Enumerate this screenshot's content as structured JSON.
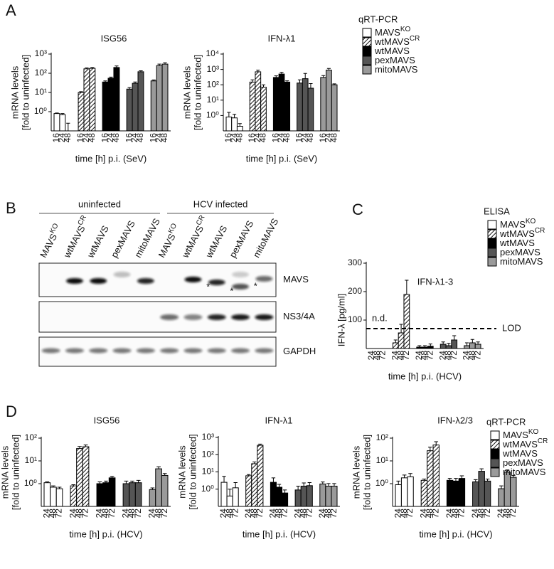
{
  "chart_data": [
    {
      "type": "bar",
      "panel": "A",
      "title": "ISG56",
      "ylabel": [
        "mRNA levels",
        "[fold to uninfected]"
      ],
      "xlabel": "time [h] p.i. (SeV)",
      "log_scale": true,
      "categories": [
        "16",
        "24",
        "48"
      ],
      "ylim": [
        0.1,
        1000
      ],
      "yticks": [
        {
          "value": 1,
          "label": "10⁰"
        },
        {
          "value": 10,
          "label": "10¹"
        },
        {
          "value": 100,
          "label": "10²"
        },
        {
          "value": 1000,
          "label": "10³"
        }
      ],
      "series": [
        {
          "color": "#ffffff",
          "values": [
            0.8,
            0.7,
            0.1
          ],
          "errors": [
            0.05,
            0.1,
            0.15
          ]
        },
        {
          "color": "#ffffff",
          "pattern": "hatch",
          "values": [
            10,
            170,
            180
          ],
          "errors": [
            1,
            20,
            20
          ]
        },
        {
          "color": "#000000",
          "values": [
            35,
            55,
            200
          ],
          "errors": [
            5,
            8,
            40
          ]
        },
        {
          "color": "#555555",
          "values": [
            15,
            30,
            120
          ],
          "errors": [
            3,
            5,
            15
          ]
        },
        {
          "color": "#9a9a9a",
          "values": [
            40,
            250,
            300
          ],
          "errors": [
            5,
            50,
            50
          ]
        }
      ]
    },
    {
      "type": "bar",
      "title": "IFN-λ1",
      "ylabel": [
        "mRNA levels",
        "[fold to uninfected]"
      ],
      "xlabel": "time [h] p.i. (SeV)",
      "log_scale": true,
      "legend_title": "qRT-PCR",
      "categories": [
        "16",
        "24",
        "48"
      ],
      "ylim": [
        0.1,
        10000
      ],
      "yticks": [
        {
          "value": 1,
          "label": "10⁰"
        },
        {
          "value": 10,
          "label": "10¹"
        },
        {
          "value": 100,
          "label": "10²"
        },
        {
          "value": 1000,
          "label": "10³"
        },
        {
          "value": 10000,
          "label": "10⁴"
        }
      ],
      "series": [
        {
          "name": "MAVS",
          "superscript": "KO",
          "color": "#ffffff",
          "values": [
            0.8,
            0.7,
            0.2
          ],
          "errors": [
            0.8,
            0.5,
            0.1
          ]
        },
        {
          "name": "wtMAVS",
          "superscript": "CR",
          "color": "#ffffff",
          "pattern": "hatch",
          "values": [
            150,
            700,
            70
          ],
          "errors": [
            60,
            200,
            30
          ]
        },
        {
          "name": "wtMAVS",
          "color": "#000000",
          "values": [
            300,
            500,
            150
          ],
          "errors": [
            80,
            150,
            30
          ]
        },
        {
          "name": "pexMAVS",
          "color": "#555555",
          "values": [
            130,
            250,
            60
          ],
          "errors": [
            80,
            300,
            60
          ]
        },
        {
          "name": "mitoMAVS",
          "color": "#9a9a9a",
          "values": [
            300,
            900,
            100
          ],
          "errors": [
            100,
            250,
            15
          ]
        }
      ]
    },
    {
      "type": "bar",
      "panel": "C",
      "title": "IFN-λ1-3",
      "ylabel": "IFN-λ [pg/ml]",
      "xlabel": "time [h] p.i. (HCV)",
      "log_scale": false,
      "legend_title": "ELISA",
      "annotation": "n.d.",
      "lod": {
        "value": 70,
        "label": "LOD"
      },
      "categories": [
        "24",
        "48",
        "72"
      ],
      "ylim": [
        0,
        300
      ],
      "yticks": [
        100,
        200,
        300
      ],
      "series": [
        {
          "name": "MAVS",
          "superscript": "KO",
          "color": "#ffffff",
          "values": [
            null,
            null,
            null
          ],
          "errors": [
            null,
            null,
            null
          ]
        },
        {
          "name": "wtMAVS",
          "superscript": "CR",
          "color": "#ffffff",
          "pattern": "hatch",
          "values": [
            20,
            55,
            190
          ],
          "errors": [
            10,
            30,
            50
          ]
        },
        {
          "name": "wtMAVS",
          "color": "#000000",
          "values": [
            5,
            5,
            8
          ],
          "errors": [
            5,
            5,
            8
          ]
        },
        {
          "name": "pexMAVS",
          "color": "#555555",
          "values": [
            15,
            10,
            30
          ],
          "errors": [
            8,
            8,
            15
          ]
        },
        {
          "name": "mitoMAVS",
          "color": "#9a9a9a",
          "values": [
            10,
            20,
            15
          ],
          "errors": [
            10,
            12,
            8
          ]
        }
      ]
    },
    {
      "type": "bar",
      "panel": "D",
      "title": "ISG56",
      "ylabel": [
        "mRNA levels",
        "[fold to uninfected]"
      ],
      "xlabel": "time [h] p.i. (HCV)",
      "log_scale": true,
      "categories": [
        "24",
        "48",
        "72"
      ],
      "ylim": [
        0.1,
        100
      ],
      "yticks": [
        {
          "value": 1,
          "label": "10⁰"
        },
        {
          "value": 10,
          "label": "10¹"
        },
        {
          "value": 100,
          "label": "10²"
        }
      ],
      "series": [
        {
          "color": "#ffffff",
          "values": [
            1.1,
            0.7,
            0.6
          ],
          "errors": [
            0.1,
            0.1,
            0.1
          ]
        },
        {
          "color": "#ffffff",
          "pattern": "hatch",
          "values": [
            0.8,
            35,
            42
          ],
          "errors": [
            0.1,
            8,
            8
          ]
        },
        {
          "color": "#000000",
          "values": [
            1.0,
            1.1,
            1.8
          ],
          "errors": [
            0.2,
            0.2,
            0.3
          ]
        },
        {
          "color": "#555555",
          "values": [
            1.0,
            1.1,
            1.1
          ],
          "errors": [
            0.3,
            0.2,
            0.3
          ]
        },
        {
          "color": "#9a9a9a",
          "values": [
            0.55,
            4.5,
            2.3
          ],
          "errors": [
            0.1,
            1,
            0.5
          ]
        }
      ]
    },
    {
      "type": "bar",
      "title": "IFN-λ1",
      "ylabel": [
        "mRNA levels",
        "[fold to uninfected]"
      ],
      "xlabel": "time [h] p.i. (HCV)",
      "log_scale": true,
      "categories": [
        "24",
        "48",
        "72"
      ],
      "ylim": [
        0.1,
        1000
      ],
      "yticks": [
        {
          "value": 1,
          "label": "10⁰"
        },
        {
          "value": 10,
          "label": "10¹"
        },
        {
          "value": 100,
          "label": "10²"
        },
        {
          "value": 1000,
          "label": "10³"
        }
      ],
      "series": [
        {
          "color": "#ffffff",
          "values": [
            2.5,
            0.4,
            1.2
          ],
          "errors": [
            3,
            0.6,
            1.2
          ]
        },
        {
          "color": "#ffffff",
          "pattern": "hatch",
          "values": [
            6,
            30,
            350
          ],
          "errors": [
            1,
            8,
            60
          ]
        },
        {
          "color": "#000000",
          "values": [
            2.5,
            1.3,
            0.6
          ],
          "errors": [
            2,
            0.6,
            0.3
          ]
        },
        {
          "color": "#555555",
          "values": [
            0.9,
            1.5,
            1.6
          ],
          "errors": [
            0.6,
            0.8,
            0.8
          ]
        },
        {
          "color": "#9a9a9a",
          "values": [
            2,
            1.5,
            1.5
          ],
          "errors": [
            0.6,
            0.6,
            0.6
          ]
        }
      ]
    },
    {
      "type": "bar",
      "title": "IFN-λ2/3",
      "ylabel": [
        "mRNA levels",
        "[fold to uninfected]"
      ],
      "xlabel": "time [h] p.i. (HCV)",
      "log_scale": true,
      "legend_title": "qRT-PCR",
      "categories": [
        "24",
        "48",
        "72"
      ],
      "ylim": [
        0.1,
        100
      ],
      "yticks": [
        {
          "value": 1,
          "label": "10⁰"
        },
        {
          "value": 10,
          "label": "10¹"
        },
        {
          "value": 100,
          "label": "10²"
        }
      ],
      "series": [
        {
          "name": "MAVS",
          "superscript": "KO",
          "color": "#ffffff",
          "values": [
            0.9,
            1.8,
            2
          ],
          "errors": [
            0.4,
            0.6,
            0.8
          ]
        },
        {
          "name": "wtMAVS",
          "superscript": "CR",
          "color": "#ffffff",
          "pattern": "hatch",
          "values": [
            1.4,
            28,
            50
          ],
          "errors": [
            0.2,
            12,
            20
          ]
        },
        {
          "name": "wtMAVS",
          "color": "#000000",
          "values": [
            1.4,
            1.3,
            1.7
          ],
          "errors": [
            0.3,
            0.4,
            0.5
          ]
        },
        {
          "name": "pexMAVS",
          "color": "#555555",
          "values": [
            1.2,
            3.5,
            1.3
          ],
          "errors": [
            0.3,
            1,
            0.3
          ]
        },
        {
          "name": "mitoMAVS",
          "color": "#9a9a9a",
          "values": [
            0.6,
            3.2,
            1.9
          ],
          "errors": [
            0.2,
            0.8,
            0.4
          ]
        }
      ]
    }
  ],
  "blot": {
    "panel": "B",
    "groups": [
      "uninfected",
      "HCV infected"
    ],
    "lanes": [
      {
        "name": "MAVS",
        "superscript": "KO"
      },
      {
        "name": "wtMAVS",
        "superscript": "CR"
      },
      {
        "name": "wtMAVS"
      },
      {
        "name": "pexMAVS"
      },
      {
        "name": "mitoMAVS"
      },
      {
        "name": "MAVS",
        "superscript": "KO"
      },
      {
        "name": "wtMAVS",
        "superscript": "CR"
      },
      {
        "name": "wtMAVS"
      },
      {
        "name": "pexMAVS"
      },
      {
        "name": "mitoMAVS"
      }
    ],
    "rows": [
      "MAVS",
      "NS3/4A",
      "GAPDH"
    ],
    "marks": [
      "*",
      "*",
      "*"
    ]
  }
}
